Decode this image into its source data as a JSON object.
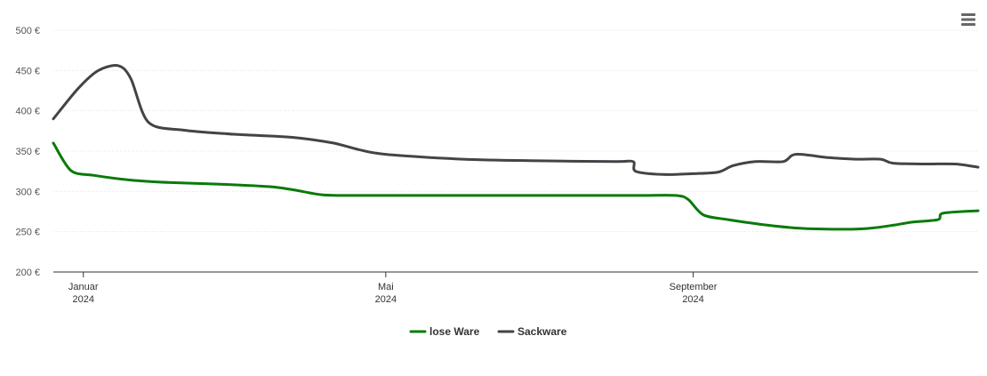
{
  "chart_data": {
    "type": "line",
    "title": "",
    "xlabel": "",
    "ylabel": "",
    "ylim": [
      200,
      500
    ],
    "yticks": [
      {
        "value": 200,
        "label": "200 €"
      },
      {
        "value": 250,
        "label": "250 €"
      },
      {
        "value": 300,
        "label": "300 €"
      },
      {
        "value": 350,
        "label": "350 €"
      },
      {
        "value": 400,
        "label": "400 €"
      },
      {
        "value": 450,
        "label": "450 €"
      },
      {
        "value": 500,
        "label": "500 €"
      }
    ],
    "xlim": [
      "2023-12-20",
      "2024-12-24"
    ],
    "xticks": [
      {
        "date": "2024-01-01",
        "month": "Januar",
        "year": "2024"
      },
      {
        "date": "2024-05-01",
        "month": "Mai",
        "year": "2024"
      },
      {
        "date": "2024-09-01",
        "month": "September",
        "year": "2024"
      }
    ],
    "grid": true,
    "legend_position": "bottom-center",
    "series": [
      {
        "name": "lose Ware",
        "color": "#0a7a0a",
        "points": [
          [
            "2023-12-20",
            360
          ],
          [
            "2023-12-27",
            326
          ],
          [
            "2024-01-05",
            320
          ],
          [
            "2024-01-20",
            314
          ],
          [
            "2024-02-05",
            311
          ],
          [
            "2024-02-25",
            309
          ],
          [
            "2024-03-15",
            306
          ],
          [
            "2024-03-25",
            302
          ],
          [
            "2024-04-05",
            296
          ],
          [
            "2024-04-15",
            295
          ],
          [
            "2024-05-15",
            295
          ],
          [
            "2024-06-15",
            295
          ],
          [
            "2024-07-15",
            295
          ],
          [
            "2024-08-10",
            295
          ],
          [
            "2024-08-25",
            295
          ],
          [
            "2024-08-30",
            290
          ],
          [
            "2024-09-05",
            271
          ],
          [
            "2024-09-15",
            265
          ],
          [
            "2024-10-01",
            258
          ],
          [
            "2024-10-15",
            254
          ],
          [
            "2024-11-01",
            253
          ],
          [
            "2024-11-10",
            254
          ],
          [
            "2024-11-20",
            258
          ],
          [
            "2024-11-28",
            262
          ],
          [
            "2024-12-08",
            265
          ],
          [
            "2024-12-10",
            273
          ],
          [
            "2024-12-24",
            276
          ]
        ]
      },
      {
        "name": "Sackware",
        "color": "#434348",
        "points": [
          [
            "2023-12-20",
            390
          ],
          [
            "2023-12-30",
            428
          ],
          [
            "2024-01-07",
            450
          ],
          [
            "2024-01-15",
            456
          ],
          [
            "2024-01-20",
            440
          ],
          [
            "2024-01-27",
            386
          ],
          [
            "2024-02-10",
            376
          ],
          [
            "2024-03-01",
            371
          ],
          [
            "2024-03-25",
            367
          ],
          [
            "2024-04-10",
            360
          ],
          [
            "2024-04-20",
            352
          ],
          [
            "2024-05-01",
            346
          ],
          [
            "2024-06-01",
            340
          ],
          [
            "2024-07-01",
            338
          ],
          [
            "2024-08-01",
            337
          ],
          [
            "2024-08-08",
            337
          ],
          [
            "2024-08-09",
            325
          ],
          [
            "2024-08-20",
            321
          ],
          [
            "2024-09-01",
            322
          ],
          [
            "2024-09-11",
            324
          ],
          [
            "2024-09-17",
            332
          ],
          [
            "2024-09-26",
            337
          ],
          [
            "2024-10-07",
            337
          ],
          [
            "2024-10-12",
            346
          ],
          [
            "2024-10-25",
            342
          ],
          [
            "2024-11-05",
            340
          ],
          [
            "2024-11-15",
            340
          ],
          [
            "2024-11-20",
            335
          ],
          [
            "2024-12-03",
            334
          ],
          [
            "2024-12-15",
            334
          ],
          [
            "2024-12-24",
            330
          ]
        ]
      }
    ]
  }
}
